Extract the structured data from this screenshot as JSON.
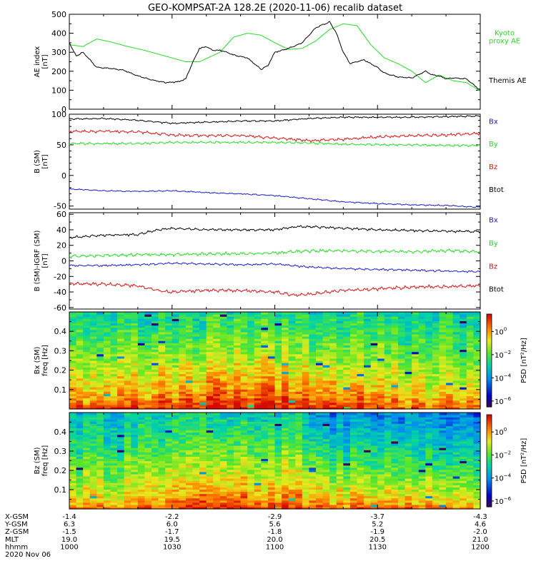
{
  "title": "GEO-KOMPSAT-2A 128.2E (2020-11-06) recalib dataset",
  "time_axis": {
    "tmin": 0,
    "tmax": 120,
    "ticks": [
      0,
      30,
      60,
      90,
      120
    ],
    "minor_step": 10
  },
  "colors": {
    "black": "#000000",
    "green": "#22dd22",
    "red": "#dd1111",
    "blue": "#1a1acc"
  },
  "chart_data": [
    {
      "id": "ae",
      "type": "line",
      "ylabel_lines": [
        "AE index",
        "[nT]"
      ],
      "ylim": [
        0,
        500
      ],
      "yticks": [
        0,
        100,
        200,
        300,
        400,
        500
      ],
      "yminor": 50,
      "legend": [
        {
          "label_lines": [
            "Kyoto",
            "proxy AE"
          ],
          "color": "#22dd22"
        },
        {
          "label_lines": [
            "Themis AE"
          ],
          "color": "#000000"
        }
      ],
      "series": [
        {
          "name": "Kyoto proxy AE",
          "color": "#22dd22",
          "noise": 0,
          "x": [
            0,
            4,
            8,
            12,
            16,
            22,
            30,
            34,
            38,
            44,
            48,
            52,
            56,
            60,
            64,
            68,
            72,
            76,
            80,
            84,
            88,
            92,
            96,
            100,
            104,
            108,
            112,
            116,
            120
          ],
          "y": [
            340,
            330,
            370,
            355,
            335,
            310,
            270,
            250,
            250,
            300,
            380,
            400,
            390,
            350,
            315,
            320,
            360,
            420,
            450,
            440,
            340,
            270,
            240,
            200,
            140,
            180,
            150,
            140,
            95
          ]
        },
        {
          "name": "Themis AE",
          "color": "#000000",
          "noise": 3,
          "x": [
            0,
            2,
            4,
            8,
            12,
            16,
            20,
            24,
            28,
            32,
            34,
            36,
            38,
            40,
            42,
            44,
            46,
            48,
            52,
            56,
            58,
            60,
            64,
            68,
            72,
            76,
            78,
            80,
            82,
            84,
            86,
            88,
            90,
            92,
            96,
            100,
            104,
            106,
            108,
            110,
            112,
            116,
            120
          ],
          "y": [
            350,
            280,
            300,
            220,
            215,
            205,
            175,
            155,
            140,
            145,
            160,
            245,
            320,
            330,
            310,
            310,
            300,
            285,
            270,
            210,
            230,
            300,
            320,
            350,
            430,
            460,
            400,
            300,
            240,
            250,
            260,
            240,
            220,
            190,
            170,
            165,
            200,
            180,
            175,
            160,
            165,
            160,
            100
          ]
        }
      ]
    },
    {
      "id": "b",
      "type": "line",
      "ylabel_lines": [
        "B (SM)",
        "[nT]"
      ],
      "ylim": [
        -55,
        100
      ],
      "yticks": [
        -50,
        0,
        50,
        100
      ],
      "yminor": 10,
      "legend": [
        {
          "label_lines": [
            "Bx"
          ],
          "color": "#1a1acc"
        },
        {
          "label_lines": [
            "By"
          ],
          "color": "#22dd22"
        },
        {
          "label_lines": [
            "Bz"
          ],
          "color": "#dd1111"
        },
        {
          "label_lines": [
            "Btot"
          ],
          "color": "#000000"
        }
      ],
      "series": [
        {
          "name": "Btot",
          "color": "#000000",
          "noise": 1.2,
          "x": [
            0,
            10,
            20,
            30,
            40,
            50,
            60,
            70,
            80,
            90,
            100,
            110,
            120
          ],
          "y": [
            92,
            93,
            90,
            85,
            87,
            89,
            89,
            93,
            95,
            95,
            95,
            96,
            97
          ]
        },
        {
          "name": "Bz",
          "color": "#dd1111",
          "noise": 2.2,
          "x": [
            0,
            10,
            20,
            30,
            40,
            50,
            60,
            70,
            80,
            90,
            100,
            110,
            120
          ],
          "y": [
            72,
            72,
            71,
            66,
            65,
            65,
            61,
            57,
            59,
            63,
            65,
            66,
            69
          ]
        },
        {
          "name": "By",
          "color": "#22dd22",
          "noise": 1.8,
          "x": [
            0,
            10,
            20,
            30,
            40,
            50,
            60,
            70,
            80,
            90,
            100,
            110,
            120
          ],
          "y": [
            52,
            52,
            52,
            54,
            54,
            54,
            54,
            53,
            51,
            50,
            50,
            49,
            49
          ]
        },
        {
          "name": "Bx",
          "color": "#1a1acc",
          "noise": 1.0,
          "x": [
            0,
            10,
            20,
            30,
            40,
            50,
            60,
            70,
            80,
            90,
            100,
            110,
            120
          ],
          "y": [
            -22,
            -25,
            -26,
            -25,
            -28,
            -30,
            -33,
            -38,
            -43,
            -46,
            -48,
            -49,
            -52
          ]
        }
      ]
    },
    {
      "id": "db",
      "type": "line",
      "ylabel_lines": [
        "B (SM)-IGRF (SM)",
        "[nT]"
      ],
      "ylim": [
        -62,
        62
      ],
      "yticks": [
        -60,
        -40,
        -20,
        0,
        20,
        40,
        60
      ],
      "yminor": 10,
      "legend": [
        {
          "label_lines": [
            "Bx"
          ],
          "color": "#1a1acc"
        },
        {
          "label_lines": [
            "By"
          ],
          "color": "#22dd22"
        },
        {
          "label_lines": [
            "Bz"
          ],
          "color": "#dd1111"
        },
        {
          "label_lines": [
            "Btot"
          ],
          "color": "#000000"
        }
      ],
      "series": [
        {
          "name": "Btot",
          "color": "#000000",
          "noise": 1.5,
          "x": [
            0,
            10,
            20,
            26,
            30,
            40,
            50,
            60,
            66,
            70,
            80,
            90,
            100,
            110,
            120
          ],
          "y": [
            30,
            33,
            34,
            40,
            42,
            40,
            40,
            40,
            44,
            44,
            42,
            40,
            39,
            38,
            38
          ]
        },
        {
          "name": "By",
          "color": "#22dd22",
          "noise": 2.0,
          "x": [
            0,
            10,
            20,
            30,
            40,
            50,
            60,
            66,
            70,
            80,
            90,
            100,
            110,
            120
          ],
          "y": [
            6,
            7,
            8,
            8,
            9,
            9,
            10,
            12,
            13,
            13,
            12,
            12,
            13,
            12
          ]
        },
        {
          "name": "Bx",
          "color": "#1a1acc",
          "noise": 1.2,
          "x": [
            0,
            10,
            20,
            30,
            40,
            50,
            60,
            70,
            80,
            90,
            100,
            110,
            120
          ],
          "y": [
            -6,
            -6,
            -5,
            -3,
            -4,
            -5,
            -4,
            -8,
            -10,
            -11,
            -12,
            -13,
            -14
          ]
        },
        {
          "name": "Bz",
          "color": "#dd1111",
          "noise": 2.0,
          "x": [
            0,
            10,
            20,
            26,
            30,
            40,
            50,
            60,
            66,
            70,
            80,
            90,
            100,
            110,
            120
          ],
          "y": [
            -29,
            -30,
            -32,
            -38,
            -40,
            -38,
            -38,
            -40,
            -44,
            -43,
            -38,
            -36,
            -34,
            -33,
            -32
          ]
        }
      ]
    },
    {
      "id": "spec_bx",
      "type": "heatmap",
      "ylabel_lines": [
        "Bx (SM)",
        "freq [Hz]"
      ],
      "ylim": [
        0,
        0.5
      ],
      "yticks": [
        0.1,
        0.2,
        0.3,
        0.4
      ],
      "yminor": 0.05,
      "colorbar_label": "PSD [nT²/Hz]",
      "colorbar_ticks": [
        {
          "base": "10",
          "exp": "0",
          "value": 0
        },
        {
          "base": "10",
          "exp": "−2",
          "value": -2
        },
        {
          "base": "10",
          "exp": "−4",
          "value": -4
        },
        {
          "base": "10",
          "exp": "−6",
          "value": -6
        }
      ],
      "cmin": -6.5,
      "cmax": 1.5,
      "time_columns": 60,
      "freq_rows": 44,
      "activity_peak": {
        "center": 50,
        "width": 40,
        "strength": 1.2
      },
      "low_freq_psd": 0.8,
      "high_freq_psd": -3.0
    },
    {
      "id": "spec_bz",
      "type": "heatmap",
      "ylabel_lines": [
        "Bz (SM)",
        "freq [Hz]"
      ],
      "ylim": [
        0,
        0.5
      ],
      "yticks": [
        0.1,
        0.2,
        0.3,
        0.4
      ],
      "yminor": 0.05,
      "colorbar_label": "PSD [nT²/Hz]",
      "colorbar_ticks": [
        {
          "base": "10",
          "exp": "0",
          "value": 0
        },
        {
          "base": "10",
          "exp": "−2",
          "value": -2
        },
        {
          "base": "10",
          "exp": "−4",
          "value": -4
        },
        {
          "base": "10",
          "exp": "−6",
          "value": -6
        }
      ],
      "cmin": -6.5,
      "cmax": 1.5,
      "time_columns": 60,
      "freq_rows": 44,
      "activity_peak": {
        "center": 50,
        "width": 30,
        "strength": 1.0
      },
      "low_freq_psd": 0.6,
      "high_freq_psd": -3.3,
      "quiet_after": 70
    }
  ],
  "orbit_table": {
    "rows": [
      {
        "label": "X-GSM",
        "values": [
          "-1.4",
          "-2.2",
          "-2.9",
          "-3.7",
          "-4.3"
        ]
      },
      {
        "label": "Y-GSM",
        "values": [
          "6.3",
          "6.0",
          "5.6",
          "5.2",
          "4.6"
        ]
      },
      {
        "label": "Z-GSM",
        "values": [
          "-1.5",
          "-1.7",
          "-1.8",
          "-1.9",
          "-2.0"
        ]
      },
      {
        "label": "MLT",
        "values": [
          "19.0",
          "19.5",
          "20.0",
          "20.5",
          "21.0"
        ]
      },
      {
        "label": "hhmm",
        "values": [
          "1000",
          "1030",
          "1100",
          "1130",
          "1200"
        ]
      }
    ],
    "date": "2020 Nov 06"
  }
}
